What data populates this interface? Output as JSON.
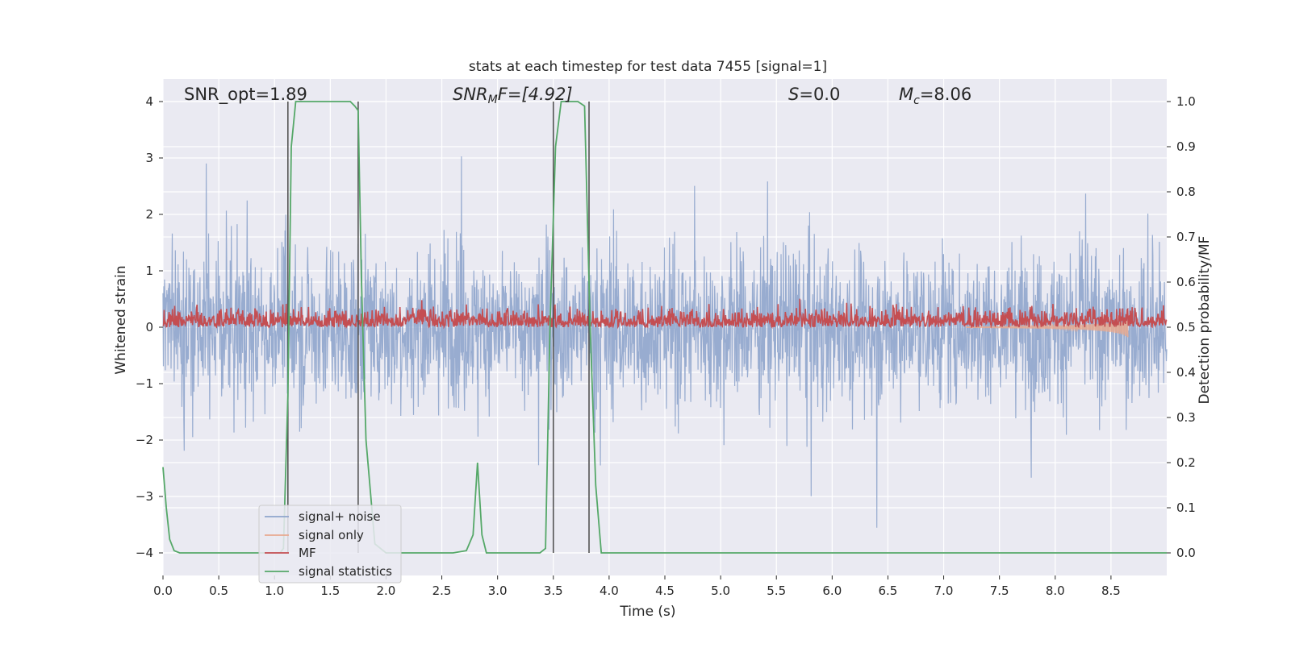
{
  "chart_data": {
    "type": "line",
    "title": "stats at each timestep for test data 7455 [signal=1]",
    "xlabel": "Time (s)",
    "ylabel_left": "Whitened strain",
    "ylabel_right": "Detection probability/MF",
    "xlim": [
      0,
      9
    ],
    "ylim_left": [
      -4.4,
      4.4
    ],
    "ylim_right": [
      -0.05,
      1.05
    ],
    "grid": true,
    "legend_placement": "lower-left",
    "x_ticks": [
      "0.0",
      "0.5",
      "1.0",
      "1.5",
      "2.0",
      "2.5",
      "3.0",
      "3.5",
      "4.0",
      "4.5",
      "5.0",
      "5.5",
      "6.0",
      "6.5",
      "7.0",
      "7.5",
      "8.0",
      "8.5"
    ],
    "y_ticks_left": [
      "4",
      "3",
      "2",
      "1",
      "0",
      "−1",
      "−2",
      "−3",
      "−4"
    ],
    "y_ticks_right": [
      "1.0",
      "0.9",
      "0.8",
      "0.7",
      "0.6",
      "0.5",
      "0.4",
      "0.3",
      "0.2",
      "0.1",
      "0.0"
    ],
    "annotations": {
      "snr_opt": "SNR_opt=1.89",
      "snr_mf_base": "SNR",
      "snr_mf_sub": "M",
      "snr_mf_rest": "F=[4.92]",
      "s_base": "S",
      "s_rest": "=0.0",
      "mc_base": "M",
      "mc_sub": "c",
      "mc_rest": "=8.06"
    },
    "vertical_markers": [
      1.12,
      1.75,
      3.5,
      3.82
    ],
    "series": [
      {
        "name": "signal+ noise",
        "color": "#8fa5cc",
        "axis": "left",
        "description_range": [
          -4.0,
          4.0
        ]
      },
      {
        "name": "signal only",
        "color": "#e8a98f",
        "axis": "left",
        "x": [
          7.2,
          7.5,
          7.8,
          8.0,
          8.2,
          8.4,
          8.5,
          8.6,
          8.65
        ],
        "y": [
          0.0,
          -0.01,
          -0.02,
          -0.03,
          -0.05,
          -0.08,
          -0.1,
          -0.14,
          -0.2
        ]
      },
      {
        "name": "MF",
        "color": "#c44e52",
        "axis": "right",
        "description_range": [
          0.5,
          0.6
        ]
      },
      {
        "name": "signal statistics",
        "color": "#55a868",
        "axis": "right",
        "x": [
          0.0,
          0.03,
          0.06,
          0.1,
          0.15,
          0.25,
          1.0,
          1.05,
          1.08,
          1.12,
          1.15,
          1.19,
          1.6,
          1.68,
          1.72,
          1.75,
          1.78,
          1.82,
          1.9,
          2.0,
          2.6,
          2.72,
          2.78,
          2.82,
          2.86,
          2.9,
          2.95,
          3.0,
          3.38,
          3.43,
          3.47,
          3.52,
          3.57,
          3.62,
          3.72,
          3.78,
          3.83,
          3.88,
          3.93,
          4.0,
          9.0
        ],
        "y": [
          0.19,
          0.1,
          0.03,
          0.005,
          0.0,
          0.0,
          0.0,
          0.0,
          0.01,
          0.35,
          0.9,
          1.0,
          1.0,
          1.0,
          0.99,
          0.98,
          0.6,
          0.25,
          0.02,
          0.0,
          0.0,
          0.005,
          0.04,
          0.2,
          0.04,
          0.0,
          0.0,
          0.0,
          0.0,
          0.01,
          0.5,
          0.9,
          1.0,
          1.0,
          1.0,
          0.99,
          0.5,
          0.15,
          0.0,
          0.0,
          0.0
        ]
      }
    ]
  }
}
